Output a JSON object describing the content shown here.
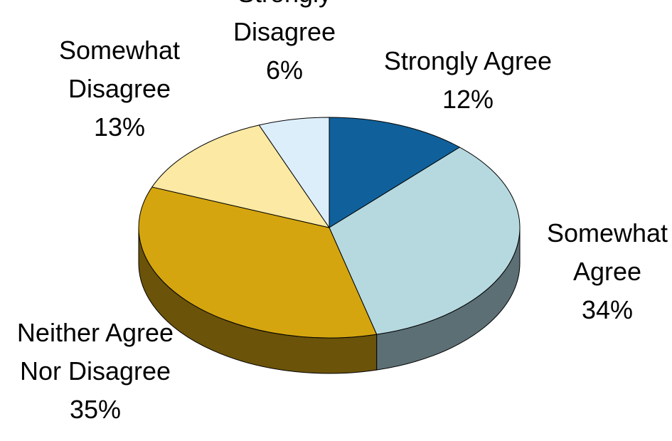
{
  "chart_data": {
    "type": "pie",
    "style": "3d",
    "title": "",
    "series": [
      {
        "categories": [
          "Strongly Agree",
          "Somewhat Agree",
          "Neither Agree Nor Disagree",
          "Somewhat Disagree",
          "Strongly Disagree"
        ],
        "values": [
          12,
          34,
          35,
          13,
          6
        ],
        "value_labels": [
          "12%",
          "34%",
          "35%",
          "13%",
          "6%"
        ],
        "colors": [
          "#10619b",
          "#b6d9e0",
          "#d4a50f",
          "#fce9a3",
          "#ddeefb"
        ],
        "side_colors": [
          "#0a3d62",
          "#5c6f74",
          "#6b530a",
          "#7e7451",
          "#6e777d"
        ]
      }
    ],
    "label_lines": [
      [
        "Strongly Agree",
        "12%"
      ],
      [
        "Somewhat",
        "Agree",
        "34%"
      ],
      [
        "Neither Agree",
        "Nor Disagree",
        "35%"
      ],
      [
        "Somewhat",
        "Disagree",
        "13%"
      ],
      [
        "Strongly",
        "Disagree",
        "6%"
      ]
    ],
    "legend": "none",
    "data_labels": "category and percentage"
  }
}
